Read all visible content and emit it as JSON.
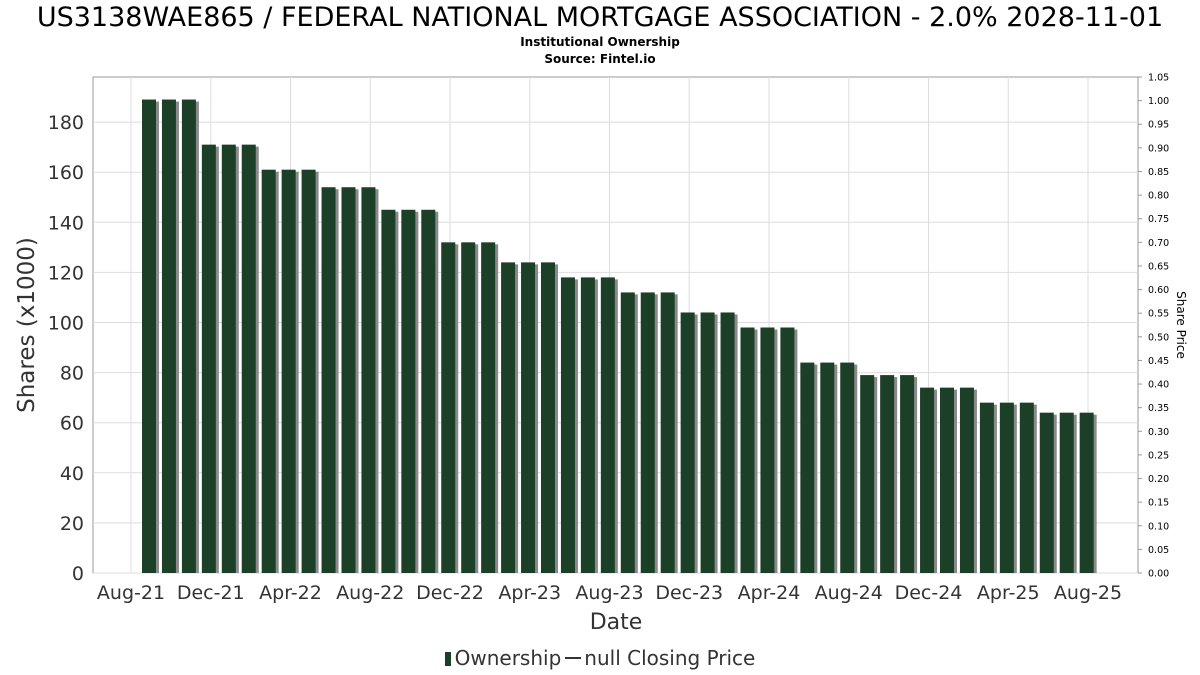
{
  "chart_data": {
    "type": "bar",
    "title": "US3138WAE865 / FEDERAL NATIONAL MORTGAGE ASSOCIATION - 2.0% 2028-11-01",
    "subtitle_lines": [
      "Institutional Ownership",
      "Source: Fintel.io"
    ],
    "xlabel": "Date",
    "ylabel": "Shares (x1000)",
    "ylabel_right": "Share Price",
    "x_tick_labels": [
      "Aug-21",
      "Dec-21",
      "Apr-22",
      "Aug-22",
      "Dec-22",
      "Apr-23",
      "Aug-23",
      "Dec-23",
      "Apr-24",
      "Aug-24",
      "Dec-24",
      "Apr-25",
      "Aug-25"
    ],
    "y_ticks": [
      0,
      20,
      40,
      60,
      80,
      100,
      120,
      140,
      160,
      180
    ],
    "ylim": [
      0,
      198
    ],
    "y2_ticks": [
      "0.00",
      "0.05",
      "0.10",
      "0.15",
      "0.20",
      "0.25",
      "0.30",
      "0.35",
      "0.40",
      "0.45",
      "0.50",
      "0.55",
      "0.60",
      "0.65",
      "0.70",
      "0.75",
      "0.80",
      "0.85",
      "0.90",
      "0.95",
      "1.00",
      "1.05"
    ],
    "y2lim": [
      0,
      1.05
    ],
    "grid": true,
    "series": [
      {
        "name": "Ownership",
        "color": "#1c3f27",
        "values": [
          189,
          189,
          189,
          171,
          171,
          171,
          161,
          161,
          161,
          154,
          154,
          154,
          145,
          145,
          145,
          132,
          132,
          132,
          124,
          124,
          124,
          118,
          118,
          118,
          112,
          112,
          112,
          104,
          104,
          104,
          98,
          98,
          98,
          84,
          84,
          84,
          79,
          79,
          79,
          74,
          74,
          74,
          68,
          68,
          68,
          64,
          64,
          64
        ]
      }
    ],
    "legend": [
      "Ownership",
      "null Closing Price"
    ],
    "legend_position": "bottom"
  }
}
